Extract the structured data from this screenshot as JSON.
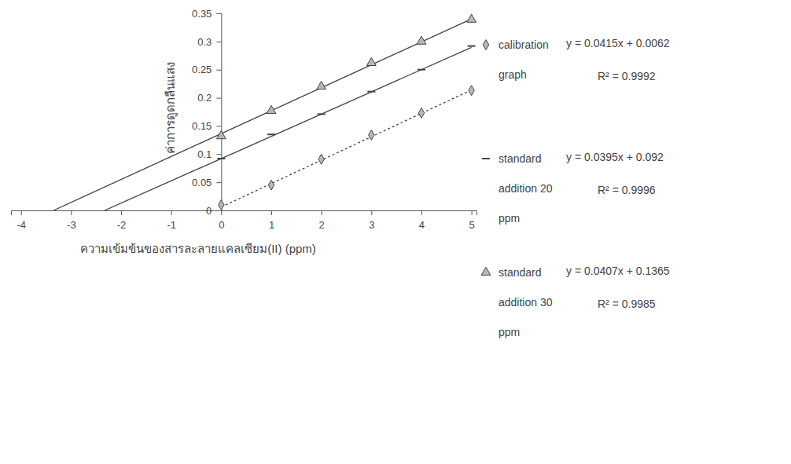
{
  "chart_data": {
    "type": "scatter",
    "x_label": "ความเข้มข้นของสารละลายแคลเซียม(II) (ppm)",
    "y_label": "ค่าการดูดกลืนแสง",
    "x": [
      0,
      1,
      2,
      3,
      4,
      5
    ],
    "xlim": [
      -4.2,
      5.1
    ],
    "xticks": [
      -4,
      -3,
      -2,
      -1,
      0,
      1,
      2,
      3,
      4,
      5
    ],
    "ylim": [
      0,
      0.35
    ],
    "yticks": [
      0,
      0.05,
      0.1,
      0.15,
      0.2,
      0.25,
      0.3,
      0.35
    ],
    "grid": false,
    "legend": "right",
    "series": [
      {
        "name": "calibration graph",
        "color": "#444444",
        "marker": "diamond",
        "line_style": "dotted",
        "values": [
          0.01,
          0.045,
          0.091,
          0.134,
          0.173,
          0.213
        ],
        "fit": {
          "x": [
            0,
            5
          ],
          "values": [
            0.006,
            0.214
          ]
        },
        "equation": "y = 0.0415x + 0.0062",
        "r2_label": "R² = 0.9992"
      },
      {
        "name": "standard addition 20 ppm",
        "color": "#444444",
        "marker": "dash",
        "line_style": "solid",
        "values": [
          0.092,
          0.135,
          0.171,
          0.211,
          0.25,
          0.292
        ],
        "fit": {
          "x": [
            -2.33,
            5
          ],
          "values": [
            0,
            0.2895
          ]
        },
        "equation": "y = 0.0395x + 0.092",
        "r2_label": "R² = 0.9996"
      },
      {
        "name": "standard addition 30 ppm",
        "color": "#444444",
        "marker": "triangle",
        "line_style": "solid",
        "values": [
          0.132,
          0.177,
          0.22,
          0.262,
          0.3,
          0.339
        ],
        "fit": {
          "x": [
            -3.35,
            5
          ],
          "values": [
            0,
            0.34
          ]
        },
        "equation": "y = 0.0407x + 0.1365",
        "r2_label": "R² = 0.9985"
      }
    ]
  }
}
